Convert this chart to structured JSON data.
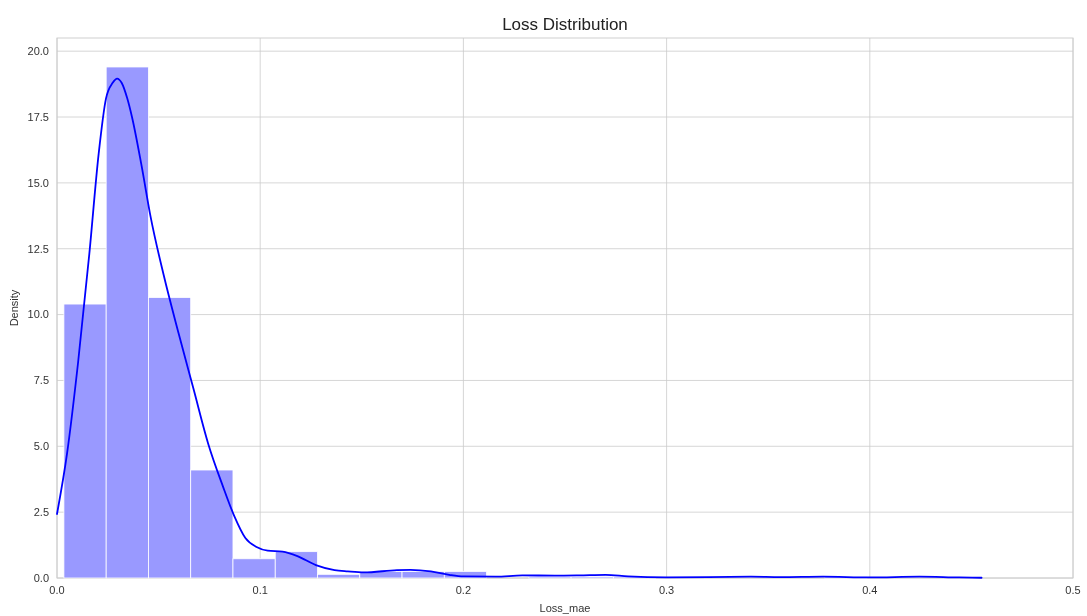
{
  "chart_data": {
    "type": "histogram",
    "title": "Loss Distribution",
    "xlabel": "Loss_mae",
    "ylabel": "Density",
    "bins": [
      0.0034,
      0.0242,
      0.045,
      0.0658,
      0.0866,
      0.1074,
      0.1282,
      0.149,
      0.1698,
      0.1906,
      0.2114,
      0.2322,
      0.253,
      0.2738,
      0.2946,
      0.3154,
      0.3362,
      0.357,
      0.3778,
      0.3986,
      0.4194,
      0.4402,
      0.461
    ],
    "values": [
      10.4,
      19.4,
      10.65,
      4.1,
      0.73,
      1.0,
      0.14,
      0.25,
      0.25,
      0.25,
      0,
      0.05,
      0.05,
      0.05,
      0,
      0,
      null,
      0,
      0.05,
      0,
      null,
      0
    ],
    "color": "#9999ff",
    "series": [
      {
        "type": "line",
        "color": "#0000ff",
        "x": [
          0,
          0.0049,
          0.0104,
          0.0159,
          0.0205,
          0.0241,
          0.0274,
          0.0296,
          0.0318,
          0.0346,
          0.0369,
          0.0415,
          0.0461,
          0.0525,
          0.0598,
          0.0671,
          0.0744,
          0.0817,
          0.0872,
          0.0927,
          0.0982,
          0.1037,
          0.111,
          0.1183,
          0.1274,
          0.1366,
          0.1431,
          0.151,
          0.1673,
          0.174,
          0.184,
          0.193,
          0.2,
          0.216,
          0.229,
          0.245,
          0.257,
          0.27,
          0.281,
          0.3,
          0.3415,
          0.356,
          0.377,
          0.4,
          0.4244,
          0.444,
          0.455
        ],
        "values": [
          2.43,
          4.7,
          8.2,
          12.3,
          16.1,
          18.2,
          18.8,
          18.96,
          18.8,
          18.2,
          17.5,
          15.7,
          13.7,
          11.5,
          9.3,
          7.2,
          5.1,
          3.47,
          2.36,
          1.52,
          1.18,
          1.04,
          1.0,
          0.83,
          0.49,
          0.3,
          0.25,
          0.21,
          0.3,
          0.31,
          0.25,
          0.12,
          0.06,
          0.05,
          0.1,
          0.09,
          0.1,
          0.12,
          0.06,
          0.02,
          0.05,
          0.03,
          0.05,
          0.02,
          0.05,
          0.02,
          0.01
        ]
      }
    ],
    "xlim": [
      0,
      0.5
    ],
    "xticks": [
      {
        "value": 0,
        "label": "0.0"
      },
      0.1,
      0.2,
      0.3,
      0.4,
      0.5
    ],
    "ylim": [
      0,
      20.5
    ],
    "yticks": [
      {
        "value": 0,
        "label": "0.0"
      },
      2.5,
      {
        "value": 5,
        "label": "5.0"
      },
      7.5,
      {
        "value": 10,
        "label": "10.0"
      },
      12.5,
      {
        "value": 15,
        "label": "15.0"
      },
      17.5,
      {
        "value": 20,
        "label": "20.0"
      }
    ],
    "grid": true
  }
}
